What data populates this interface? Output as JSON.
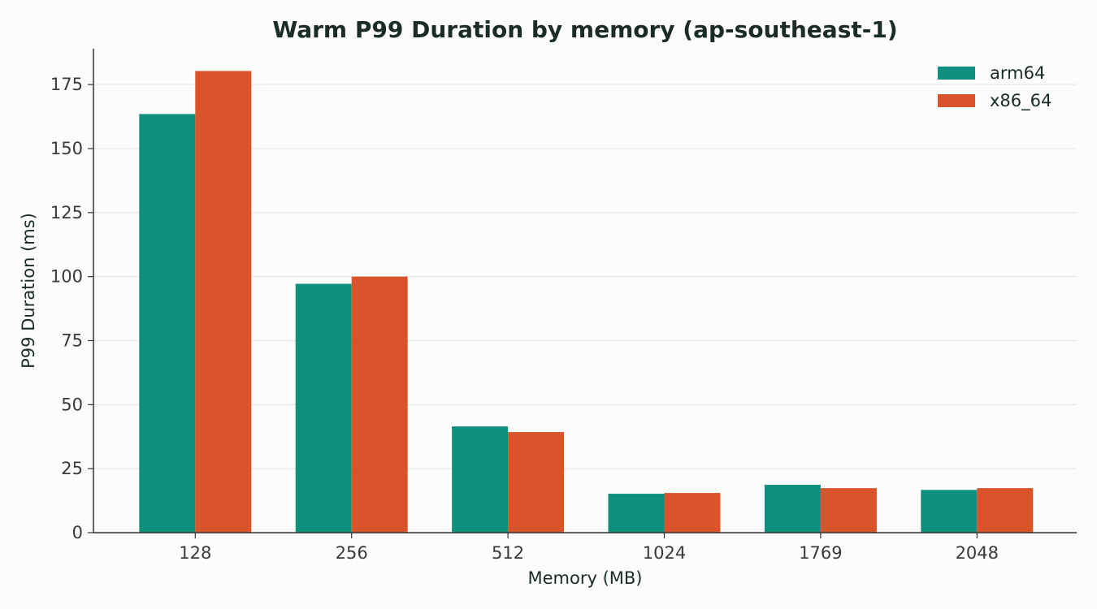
{
  "chart_data": {
    "type": "bar",
    "title": "Warm P99 Duration by memory (ap-southeast-1)",
    "xlabel": "Memory (MB)",
    "ylabel": "P99 Duration (ms)",
    "categories": [
      "128",
      "256",
      "512",
      "1024",
      "1769",
      "2048"
    ],
    "series": [
      {
        "name": "arm64",
        "color": "#0f8f7e",
        "values": [
          163.5,
          97.2,
          41.5,
          15.2,
          18.7,
          16.7
        ]
      },
      {
        "name": "x86_64",
        "color": "#d9532b",
        "values": [
          180.3,
          100.0,
          39.3,
          15.5,
          17.4,
          17.4
        ]
      }
    ],
    "ylim": [
      0,
      189
    ],
    "yticks": [
      0,
      25,
      50,
      75,
      100,
      125,
      150,
      175
    ],
    "grid": "horizontal",
    "legend_position": "top-right"
  }
}
